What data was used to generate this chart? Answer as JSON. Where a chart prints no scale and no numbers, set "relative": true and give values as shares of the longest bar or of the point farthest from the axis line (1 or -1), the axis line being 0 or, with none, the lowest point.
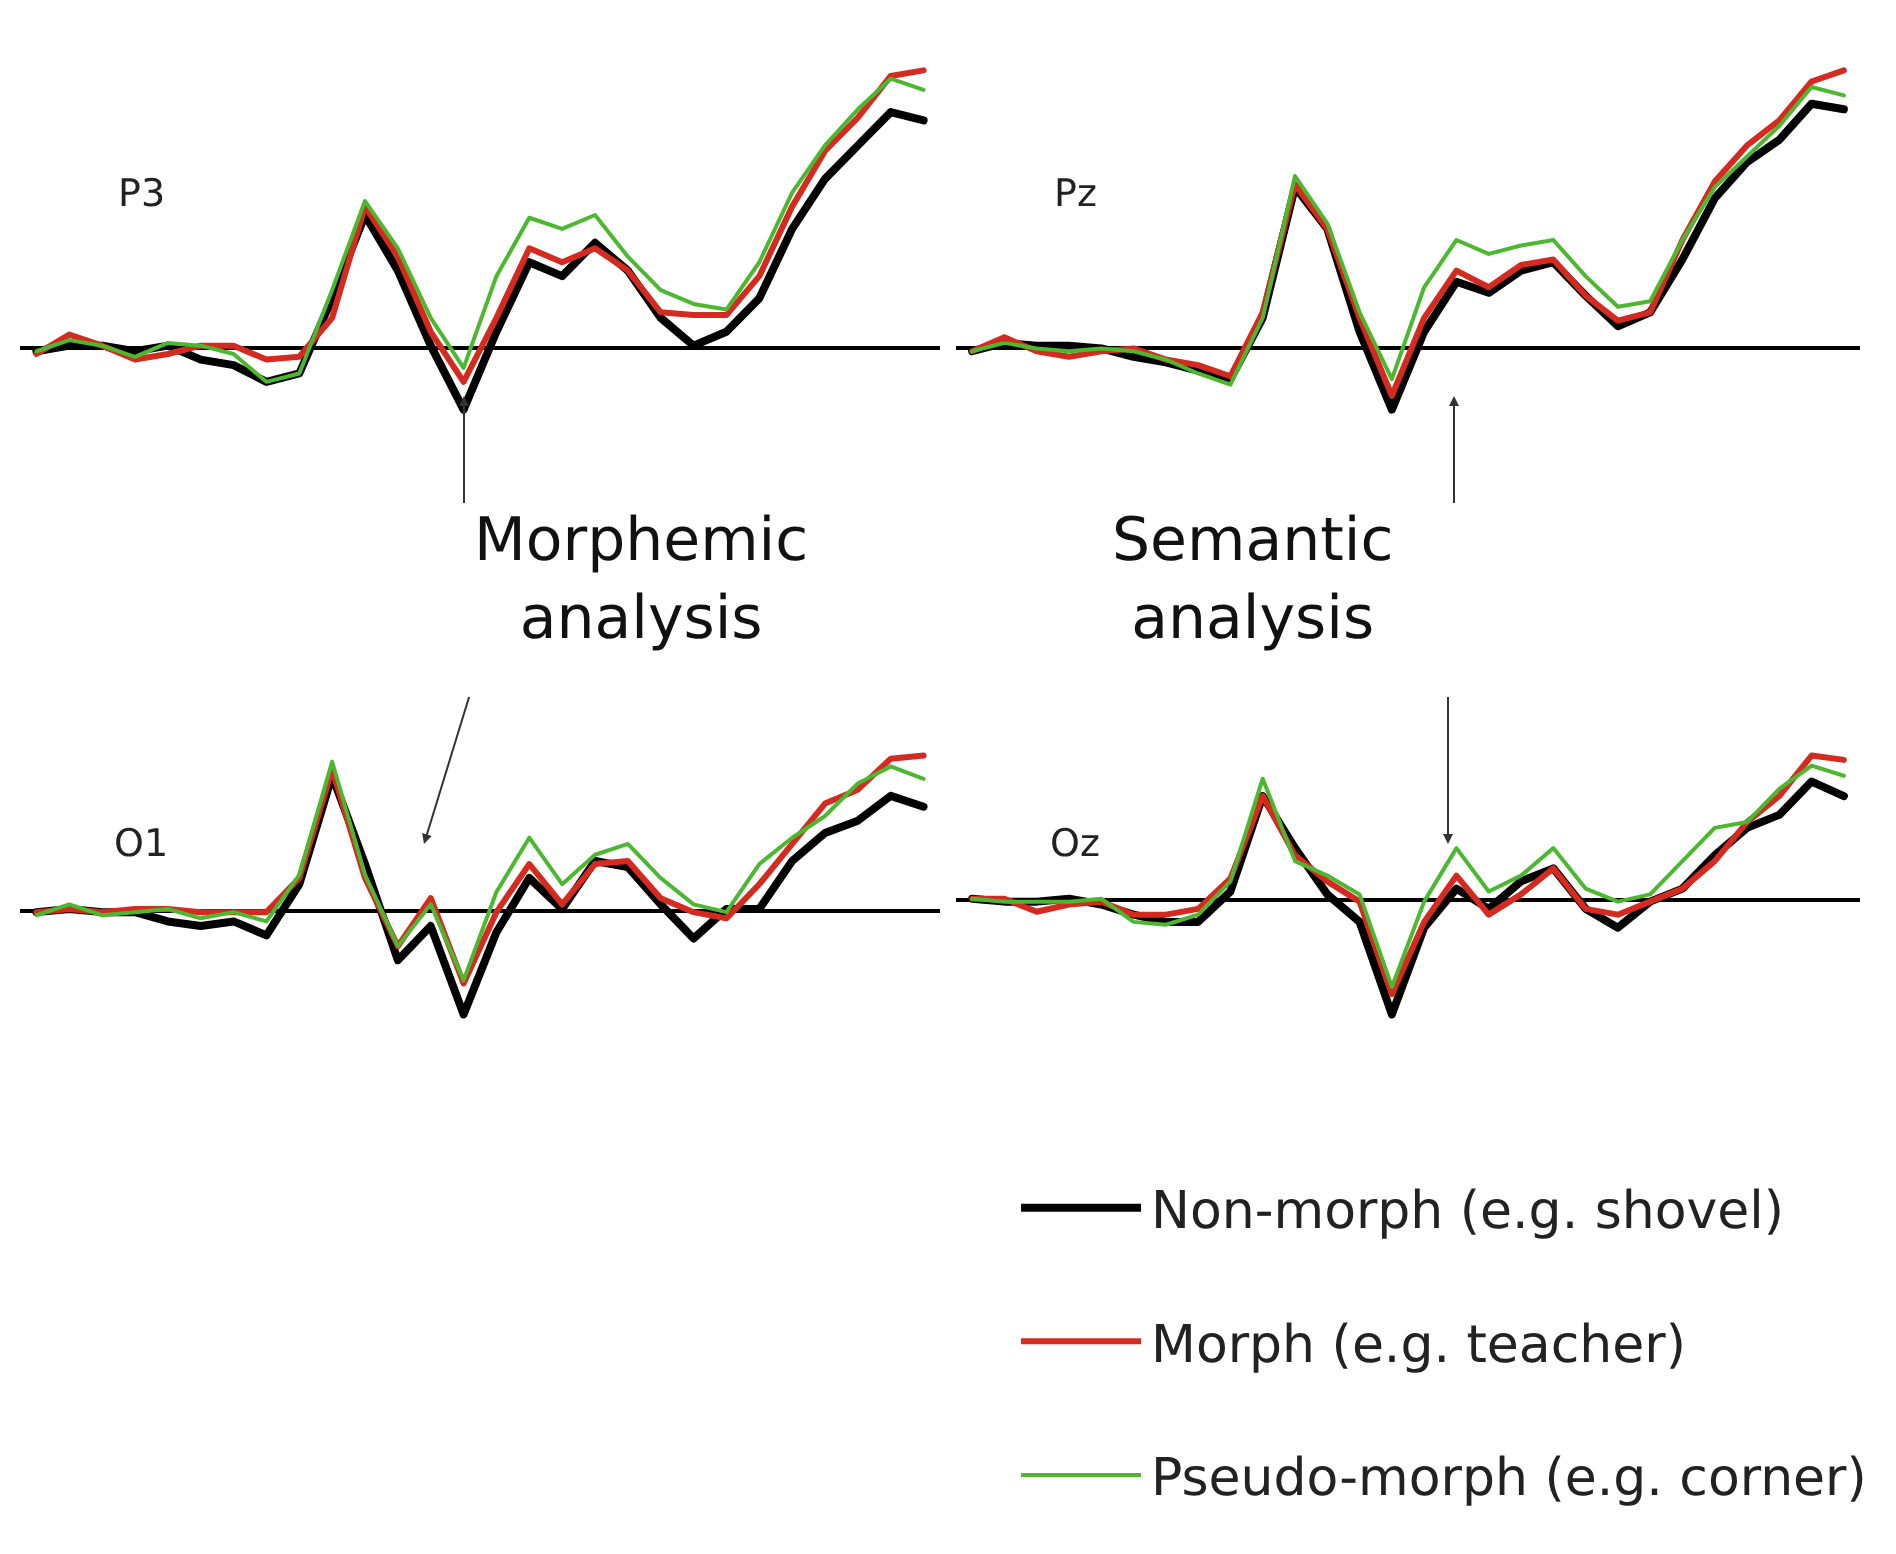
{
  "chart_data": [
    {
      "type": "line",
      "title": "P3",
      "relative": true,
      "legend": "bottom right",
      "marker": "none",
      "line_style": "solid",
      "categories": [
        null,
        null,
        null,
        null,
        null,
        null,
        null,
        null,
        null,
        null,
        null,
        null,
        null,
        null,
        null,
        null,
        null,
        null,
        null,
        null,
        null,
        null,
        null,
        null,
        null,
        null,
        null,
        null
      ],
      "annotations": [
        "Morphemic analysis"
      ],
      "series": [
        {
          "name": "Non-morph (e.g. shovel)",
          "color": "#000000",
          "values": [
            -0.01,
            0.01,
            0.01,
            -0.01,
            0.01,
            -0.04,
            -0.06,
            -0.12,
            -0.09,
            0.18,
            0.48,
            0.28,
            0.01,
            -0.22,
            0.06,
            0.31,
            0.26,
            0.38,
            0.28,
            0.11,
            0.01,
            0.06,
            0.18,
            0.43,
            0.61,
            0.73,
            0.85,
            0.82
          ]
        },
        {
          "name": "Morph (e.g. teacher)",
          "color": "#d42a20",
          "values": [
            -0.02,
            0.05,
            0.01,
            -0.04,
            -0.02,
            0.01,
            0.01,
            -0.04,
            -0.03,
            0.11,
            0.51,
            0.33,
            0.06,
            -0.12,
            0.11,
            0.36,
            0.31,
            0.36,
            0.28,
            0.13,
            0.12,
            0.12,
            0.26,
            0.51,
            0.71,
            0.83,
            0.98,
            1
          ]
        },
        {
          "name": "Pseudo-morph (e.g. corner)",
          "color": "#4cb830",
          "values": [
            -0.01,
            0.03,
            0.01,
            -0.03,
            0.02,
            0.01,
            -0.02,
            -0.12,
            -0.09,
            0.21,
            0.53,
            0.36,
            0.11,
            -0.07,
            0.26,
            0.47,
            0.43,
            0.48,
            0.33,
            0.21,
            0.16,
            0.14,
            0.31,
            0.56,
            0.73,
            0.86,
            0.97,
            0.93
          ]
        }
      ]
    },
    {
      "type": "line",
      "title": "Pz",
      "relative": true,
      "marker": "none",
      "line_style": "solid",
      "categories": [
        null,
        null,
        null,
        null,
        null,
        null,
        null,
        null,
        null,
        null,
        null,
        null,
        null,
        null,
        null,
        null,
        null,
        null,
        null,
        null,
        null,
        null,
        null,
        null,
        null,
        null,
        null,
        null
      ],
      "annotations": [
        "Semantic analysis"
      ],
      "series": [
        {
          "color": "#000000",
          "values": [
            -0.01,
            0.02,
            0.01,
            0.01,
            0,
            -0.03,
            -0.05,
            -0.08,
            -0.11,
            0.11,
            0.58,
            0.43,
            0.06,
            -0.22,
            0.06,
            0.24,
            0.2,
            0.28,
            0.31,
            0.19,
            0.08,
            0.13,
            0.32,
            0.54,
            0.67,
            0.75,
            0.88,
            0.86
          ]
        },
        {
          "color": "#d42a20",
          "values": [
            -0.01,
            0.04,
            -0.01,
            -0.03,
            -0.01,
            0,
            -0.04,
            -0.06,
            -0.1,
            0.13,
            0.59,
            0.43,
            0.11,
            -0.17,
            0.11,
            0.28,
            0.22,
            0.3,
            0.32,
            0.19,
            0.1,
            0.13,
            0.39,
            0.6,
            0.73,
            0.82,
            0.96,
            1
          ]
        },
        {
          "color": "#4cb830",
          "values": [
            -0.01,
            0.02,
            0,
            -0.01,
            0,
            -0.01,
            -0.04,
            -0.09,
            -0.13,
            0.11,
            0.62,
            0.45,
            0.13,
            -0.11,
            0.22,
            0.39,
            0.34,
            0.37,
            0.39,
            0.26,
            0.15,
            0.17,
            0.39,
            0.58,
            0.69,
            0.8,
            0.94,
            0.91
          ]
        }
      ]
    },
    {
      "type": "line",
      "title": "O1",
      "relative": true,
      "marker": "none",
      "line_style": "solid",
      "categories": [
        null,
        null,
        null,
        null,
        null,
        null,
        null,
        null,
        null,
        null,
        null,
        null,
        null,
        null,
        null,
        null,
        null,
        null,
        null,
        null,
        null,
        null,
        null,
        null,
        null,
        null,
        null,
        null
      ],
      "series": [
        {
          "color": "#000000",
          "values": [
            -0.01,
            0.01,
            -0.01,
            -0.01,
            -0.07,
            -0.1,
            -0.07,
            -0.16,
            0.17,
            0.87,
            0.3,
            -0.32,
            -0.1,
            -0.67,
            -0.14,
            0.21,
            0.01,
            0.32,
            0.28,
            0.04,
            -0.18,
            0.01,
            0.01,
            0.32,
            0.5,
            0.58,
            0.74,
            0.67
          ]
        },
        {
          "color": "#d42a20",
          "values": [
            -0.01,
            0.01,
            -0.01,
            0.01,
            0.01,
            -0.01,
            -0.01,
            -0.01,
            0.21,
            0.91,
            0.21,
            -0.23,
            0.08,
            -0.47,
            -0.01,
            0.3,
            0.04,
            0.3,
            0.32,
            0.08,
            -0.01,
            -0.05,
            0.17,
            0.43,
            0.69,
            0.78,
            0.98,
            1
          ]
        },
        {
          "color": "#4cb830",
          "values": [
            -0.03,
            0.04,
            -0.03,
            -0.01,
            0.01,
            -0.05,
            -0.01,
            -0.07,
            0.23,
            0.96,
            0.23,
            -0.23,
            0.04,
            -0.45,
            0.12,
            0.47,
            0.17,
            0.36,
            0.43,
            0.21,
            0.04,
            -0.01,
            0.3,
            0.47,
            0.61,
            0.82,
            0.93,
            0.85
          ]
        }
      ]
    },
    {
      "type": "line",
      "title": "Oz",
      "relative": true,
      "marker": "none",
      "line_style": "solid",
      "categories": [
        null,
        null,
        null,
        null,
        null,
        null,
        null,
        null,
        null,
        null,
        null,
        null,
        null,
        null,
        null,
        null,
        null,
        null,
        null,
        null,
        null,
        null,
        null,
        null,
        null,
        null,
        null,
        null
      ],
      "series": [
        {
          "color": "#000000",
          "values": [
            0.01,
            -0.01,
            -0.01,
            0.01,
            -0.03,
            -0.1,
            -0.15,
            -0.15,
            0.06,
            0.72,
            0.36,
            0.04,
            -0.15,
            -0.79,
            -0.19,
            0.08,
            -0.06,
            0.13,
            0.22,
            -0.06,
            -0.19,
            -0.01,
            0.08,
            0.31,
            0.5,
            0.59,
            0.82,
            0.72
          ]
        },
        {
          "color": "#d42a20",
          "values": [
            0.01,
            0.01,
            -0.08,
            -0.03,
            -0.01,
            -0.1,
            -0.1,
            -0.06,
            0.15,
            0.72,
            0.31,
            0.13,
            -0.01,
            -0.65,
            -0.15,
            0.17,
            -0.1,
            0.04,
            0.22,
            -0.06,
            -0.1,
            -0.01,
            0.08,
            0.27,
            0.54,
            0.72,
            1,
            0.97
          ]
        },
        {
          "color": "#4cb830",
          "values": [
            0.01,
            -0.01,
            -0.01,
            -0.01,
            0.01,
            -0.15,
            -0.17,
            -0.1,
            0.13,
            0.84,
            0.27,
            0.17,
            0.04,
            -0.6,
            -0.01,
            0.36,
            0.06,
            0.17,
            0.36,
            0.08,
            -0.01,
            0.04,
            0.27,
            0.5,
            0.54,
            0.77,
            0.93,
            0.86
          ]
        }
      ]
    }
  ]
}
